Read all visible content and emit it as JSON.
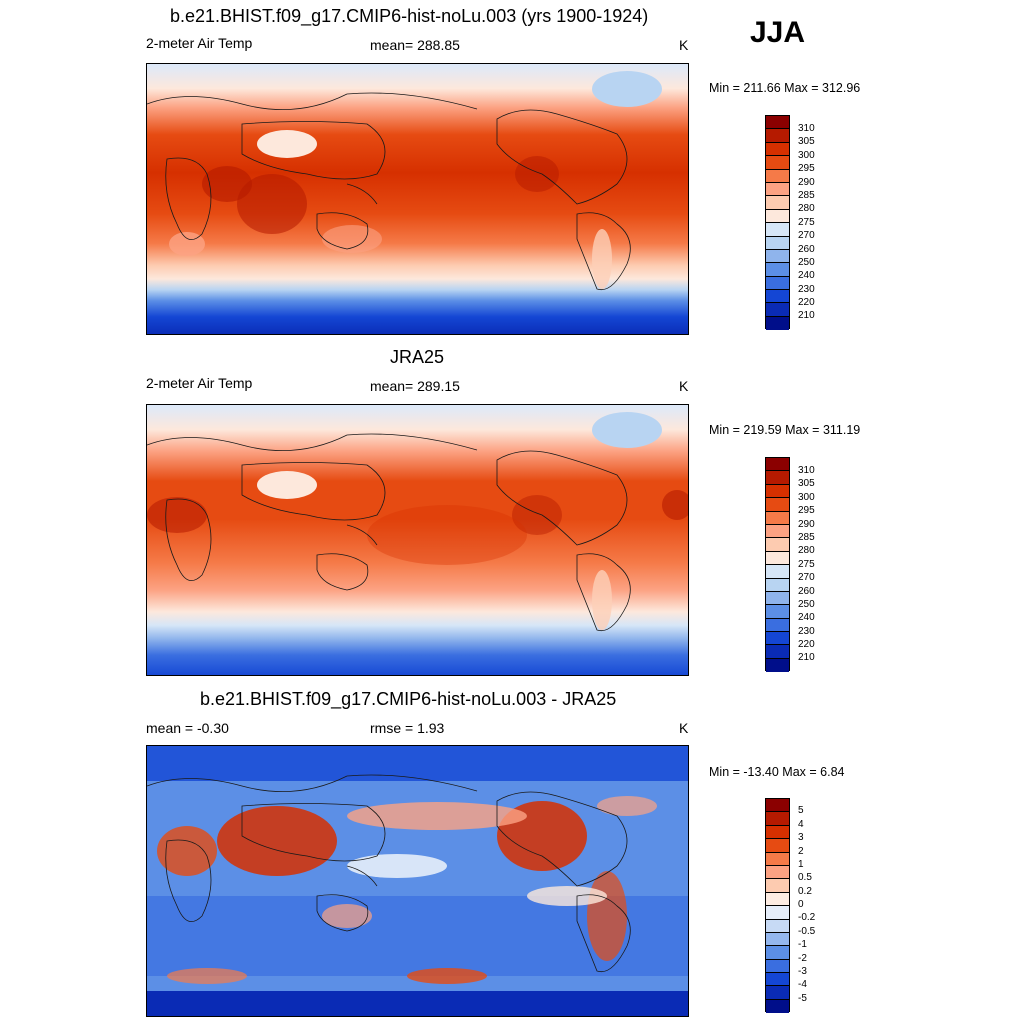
{
  "season": "JJA",
  "panels": [
    {
      "title": "b.e21.BHIST.f09_g17.CMIP6-hist-noLu.003 (yrs 1900-1924)",
      "left_label": "2-meter Air Temp",
      "center_label": "mean= 288.85",
      "units": "K",
      "minmax": "Min = 211.66 Max = 312.96",
      "colorbar": {
        "labels": [
          "310",
          "305",
          "300",
          "295",
          "290",
          "285",
          "280",
          "275",
          "270",
          "260",
          "250",
          "240",
          "230",
          "220",
          "210"
        ],
        "colors": [
          "#8b0000",
          "#b51a00",
          "#d63000",
          "#e64b12",
          "#f57a48",
          "#fca283",
          "#fdcbb0",
          "#fde8dc",
          "#d6e6f7",
          "#b8d4f2",
          "#8fb4ec",
          "#5c8fe6",
          "#3a6ee0",
          "#1446d4",
          "#0a2bb5",
          "#000e8a"
        ]
      }
    },
    {
      "title": "JRA25",
      "left_label": "2-meter Air Temp",
      "center_label": "mean= 289.15",
      "units": "K",
      "minmax": "Min = 219.59 Max = 311.19",
      "colorbar": {
        "labels": [
          "310",
          "305",
          "300",
          "295",
          "290",
          "285",
          "280",
          "275",
          "270",
          "260",
          "250",
          "240",
          "230",
          "220",
          "210"
        ],
        "colors": [
          "#8b0000",
          "#b51a00",
          "#d63000",
          "#e64b12",
          "#f57a48",
          "#fca283",
          "#fdcbb0",
          "#fde8dc",
          "#d6e6f7",
          "#b8d4f2",
          "#8fb4ec",
          "#5c8fe6",
          "#3a6ee0",
          "#1446d4",
          "#0a2bb5",
          "#000e8a"
        ]
      }
    },
    {
      "title": "b.e21.BHIST.f09_g17.CMIP6-hist-noLu.003 - JRA25",
      "left_label": "mean =  -0.30",
      "center_label": "rmse =   1.93",
      "units": "K",
      "minmax": "Min = -13.40 Max =   6.84",
      "colorbar": {
        "labels": [
          "5",
          "4",
          "3",
          "2",
          "1",
          "0.5",
          "0.2",
          "0",
          "-0.2",
          "-0.5",
          "-1",
          "-2",
          "-3",
          "-4",
          "-5"
        ],
        "colors": [
          "#8b0000",
          "#b51a00",
          "#d63000",
          "#e64b12",
          "#f57a48",
          "#fca283",
          "#fdcbb0",
          "#fdece2",
          "#e6eefa",
          "#c7daf5",
          "#94b7ee",
          "#5c8fe6",
          "#3a6ee0",
          "#1446d4",
          "#0a2bb5",
          "#000e8a"
        ]
      }
    }
  ]
}
